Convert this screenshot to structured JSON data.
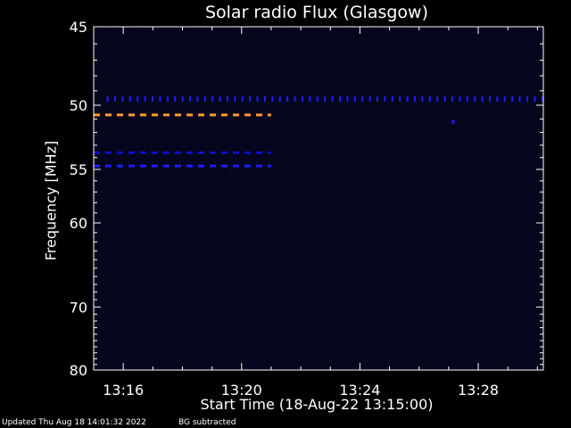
{
  "chart_data": {
    "type": "heatmap",
    "title": "Solar radio Flux (Glasgow)",
    "xlabel": "Start Time (18-Aug-22 13:15:00)",
    "ylabel": "Frequency [MHz]",
    "x_ticks": [
      "13:16",
      "13:20",
      "13:24",
      "13:28"
    ],
    "x_tick_minutes": [
      1,
      5,
      9,
      13
    ],
    "xlim_minutes_after_start": [
      0,
      15.2
    ],
    "y_ticks": [
      45,
      50,
      55,
      60,
      70,
      80
    ],
    "ylim": [
      45,
      80
    ],
    "y_scale": "reciprocal",
    "background_color": "#000000",
    "spectrogram_color": "#05051c",
    "grid": false,
    "features": [
      {
        "kind": "dotted-line",
        "frequency": 49.5,
        "start_minute": 0.2,
        "end_minute": 15.2,
        "color": "#1c1cff"
      },
      {
        "kind": "dashed-line",
        "frequency": 50.7,
        "start_minute": 0,
        "end_minute": 6.0,
        "color": "#ff9930"
      },
      {
        "kind": "dashed-line",
        "frequency": 53.6,
        "start_minute": 0,
        "end_minute": 6.0,
        "color": "#0f0fc8"
      },
      {
        "kind": "dashed-line",
        "frequency": 54.7,
        "start_minute": 0,
        "end_minute": 6.0,
        "color": "#1c1cff"
      },
      {
        "kind": "dot",
        "frequency": 51.2,
        "minute": 12.15,
        "color": "#1c1cff"
      }
    ]
  },
  "footer": {
    "updated": "Updated Thu Aug 18 14:01:32 2022",
    "bg_note": "BG subtracted"
  }
}
